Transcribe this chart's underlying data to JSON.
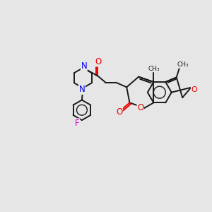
{
  "background_color": "#e6e6e6",
  "bond_color": "#1a1a1a",
  "bond_width": 1.4,
  "N_color": "#0000ee",
  "O_color": "#ee0000",
  "F_color": "#cc00cc",
  "figsize": [
    3.0,
    3.0
  ],
  "dpi": 100,
  "xlim": [
    0,
    10
  ],
  "ylim": [
    0,
    10
  ]
}
